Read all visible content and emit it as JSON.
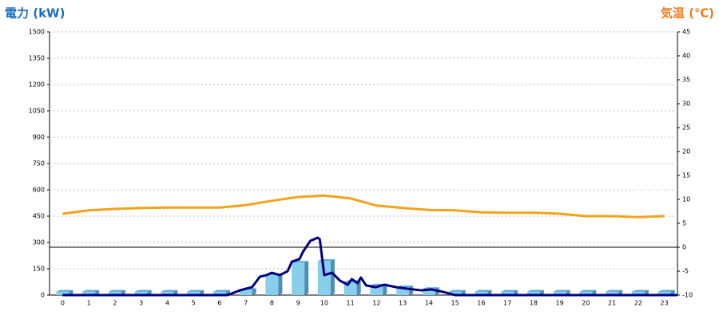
{
  "chart_data": {
    "type": "bar",
    "y_label": "電力 (kW)",
    "y2_label": "気温 (℃)",
    "categories": [
      "0",
      "1",
      "2",
      "3",
      "4",
      "5",
      "6",
      "7",
      "8",
      "9",
      "10",
      "11",
      "12",
      "13",
      "14",
      "15",
      "16",
      "17",
      "18",
      "19",
      "20",
      "21",
      "22",
      "23"
    ],
    "ylim": [
      0,
      1500
    ],
    "yticks": [
      0,
      150,
      300,
      450,
      600,
      750,
      900,
      1050,
      1200,
      1350,
      1500
    ],
    "y2lim": [
      -10,
      45
    ],
    "y2ticks": [
      -10,
      -5,
      0,
      5,
      10,
      15,
      20,
      25,
      30,
      35,
      40,
      45
    ],
    "grid": true,
    "series": [
      {
        "kind": "bar",
        "color": "#87ceeb",
        "values": [
          20,
          20,
          20,
          20,
          20,
          20,
          20,
          30,
          115,
          185,
          195,
          75,
          55,
          45,
          35,
          20,
          20,
          20,
          20,
          20,
          20,
          20,
          20,
          20
        ]
      },
      {
        "kind": "line",
        "color": "#000080",
        "x": [
          0,
          6,
          6.3,
          6.78,
          7,
          7.24,
          7.54,
          7.8,
          8,
          8.3,
          8.6,
          8.76,
          9.05,
          9.2,
          9.47,
          9.75,
          9.83,
          10,
          10.3,
          10.6,
          10.9,
          11.05,
          11.27,
          11.4,
          11.6,
          11.97,
          12.3,
          12.75,
          13.2,
          13.7,
          14.1,
          14.55,
          15,
          23.5
        ],
        "values": [
          0,
          0,
          0,
          27,
          36,
          45,
          105,
          114,
          127,
          114,
          136,
          190,
          205,
          250,
          309,
          327,
          318,
          114,
          127,
          82,
          59,
          91,
          68,
          100,
          55,
          45,
          59,
          45,
          36,
          27,
          32,
          18,
          0,
          0
        ]
      },
      {
        "kind": "line",
        "axis": "y2",
        "color": "#f5a21b",
        "values": [
          7.0,
          7.7,
          8.0,
          8.2,
          8.3,
          8.3,
          8.3,
          8.8,
          9.7,
          10.5,
          10.8,
          10.2,
          8.7,
          8.2,
          7.8,
          7.7,
          7.3,
          7.2,
          7.2,
          7.0,
          6.5,
          6.5,
          6.3,
          6.5
        ]
      }
    ]
  }
}
